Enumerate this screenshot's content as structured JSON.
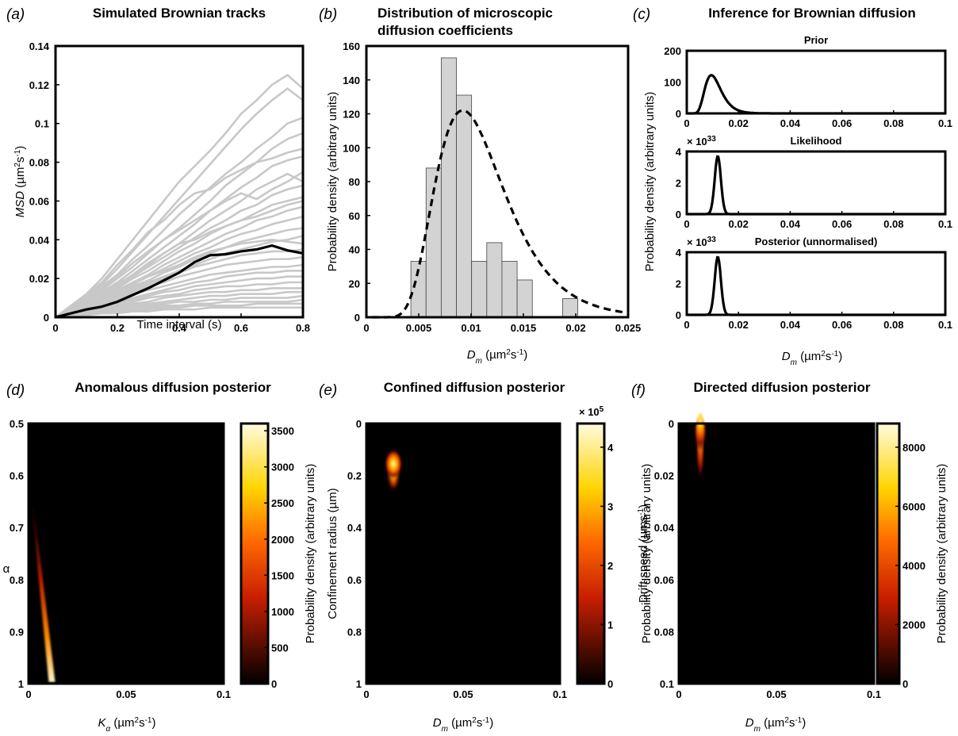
{
  "chart_data": [
    {
      "panel": "a",
      "panel_label": "(a)",
      "type": "line",
      "title": "Simulated Brownian tracks",
      "xlabel": "Time interval (s)",
      "ylabel_main": "MSD",
      "ylabel_unit": "(µm²s⁻¹)",
      "xlim": [
        0,
        0.8
      ],
      "ylim": [
        0,
        0.14
      ],
      "xticks": [
        "0",
        "0.2",
        "0.4",
        "0.6",
        "0.8"
      ],
      "yticks": [
        "0",
        "0.02",
        "0.04",
        "0.06",
        "0.08",
        "0.1",
        "0.12",
        "0.14"
      ],
      "x": [
        0,
        0.05,
        0.1,
        0.15,
        0.2,
        0.25,
        0.3,
        0.35,
        0.4,
        0.45,
        0.5,
        0.55,
        0.6,
        0.65,
        0.7,
        0.75,
        0.8
      ],
      "mean_series": {
        "color": "#000000",
        "values": [
          0,
          0.002,
          0.004,
          0.0055,
          0.008,
          0.0115,
          0.015,
          0.019,
          0.023,
          0.0285,
          0.032,
          0.0325,
          0.034,
          0.035,
          0.037,
          0.0345,
          0.033
        ]
      },
      "track_color": "#c8c8c8",
      "tracks": [
        [
          0,
          0.006,
          0.012,
          0.02,
          0.03,
          0.04,
          0.05,
          0.06,
          0.07,
          0.078,
          0.086,
          0.095,
          0.105,
          0.112,
          0.12,
          0.125,
          0.118
        ],
        [
          0,
          0.005,
          0.011,
          0.017,
          0.025,
          0.034,
          0.043,
          0.052,
          0.061,
          0.07,
          0.079,
          0.088,
          0.097,
          0.105,
          0.112,
          0.118,
          0.112
        ],
        [
          0,
          0.005,
          0.01,
          0.016,
          0.022,
          0.03,
          0.037,
          0.045,
          0.053,
          0.06,
          0.067,
          0.074,
          0.08,
          0.087,
          0.093,
          0.1,
          0.103
        ],
        [
          0,
          0.004,
          0.009,
          0.014,
          0.02,
          0.026,
          0.033,
          0.04,
          0.046,
          0.053,
          0.06,
          0.068,
          0.074,
          0.08,
          0.087,
          0.092,
          0.095
        ],
        [
          0,
          0.004,
          0.008,
          0.013,
          0.018,
          0.024,
          0.03,
          0.036,
          0.042,
          0.048,
          0.055,
          0.061,
          0.067,
          0.072,
          0.078,
          0.081,
          0.083
        ],
        [
          0,
          0.004,
          0.008,
          0.012,
          0.017,
          0.022,
          0.028,
          0.033,
          0.038,
          0.044,
          0.05,
          0.055,
          0.06,
          0.066,
          0.07,
          0.074,
          0.07
        ],
        [
          0,
          0.003,
          0.007,
          0.011,
          0.016,
          0.021,
          0.026,
          0.031,
          0.036,
          0.041,
          0.046,
          0.05,
          0.055,
          0.058,
          0.063,
          0.066,
          0.068
        ],
        [
          0,
          0.003,
          0.007,
          0.011,
          0.015,
          0.02,
          0.024,
          0.029,
          0.034,
          0.038,
          0.043,
          0.047,
          0.05,
          0.054,
          0.058,
          0.06,
          0.062
        ],
        [
          0,
          0.003,
          0.006,
          0.01,
          0.014,
          0.018,
          0.022,
          0.027,
          0.031,
          0.035,
          0.039,
          0.043,
          0.046,
          0.05,
          0.052,
          0.055,
          0.057
        ],
        [
          0,
          0.003,
          0.006,
          0.009,
          0.013,
          0.017,
          0.021,
          0.025,
          0.029,
          0.033,
          0.036,
          0.04,
          0.043,
          0.045,
          0.048,
          0.05,
          0.052
        ],
        [
          0,
          0.003,
          0.006,
          0.009,
          0.012,
          0.016,
          0.019,
          0.023,
          0.026,
          0.03,
          0.033,
          0.036,
          0.039,
          0.041,
          0.043,
          0.045,
          0.046
        ],
        [
          0,
          0.002,
          0.005,
          0.008,
          0.011,
          0.015,
          0.018,
          0.021,
          0.024,
          0.027,
          0.03,
          0.033,
          0.035,
          0.037,
          0.039,
          0.04,
          0.042
        ],
        [
          0,
          0.002,
          0.005,
          0.008,
          0.011,
          0.014,
          0.017,
          0.02,
          0.023,
          0.026,
          0.028,
          0.03,
          0.032,
          0.033,
          0.034,
          0.034,
          0.035
        ],
        [
          0,
          0.002,
          0.004,
          0.007,
          0.01,
          0.013,
          0.016,
          0.018,
          0.021,
          0.023,
          0.025,
          0.027,
          0.028,
          0.029,
          0.03,
          0.03,
          0.031
        ],
        [
          0,
          0.002,
          0.004,
          0.007,
          0.009,
          0.012,
          0.014,
          0.016,
          0.018,
          0.02,
          0.022,
          0.023,
          0.024,
          0.025,
          0.026,
          0.026,
          0.027
        ],
        [
          0,
          0.002,
          0.004,
          0.006,
          0.008,
          0.01,
          0.012,
          0.014,
          0.016,
          0.018,
          0.019,
          0.021,
          0.022,
          0.023,
          0.023,
          0.024,
          0.024
        ],
        [
          0,
          0.002,
          0.003,
          0.005,
          0.007,
          0.009,
          0.011,
          0.013,
          0.014,
          0.016,
          0.017,
          0.018,
          0.019,
          0.02,
          0.02,
          0.021,
          0.021
        ],
        [
          0,
          0.001,
          0.003,
          0.005,
          0.006,
          0.008,
          0.01,
          0.011,
          0.012,
          0.014,
          0.015,
          0.016,
          0.016,
          0.017,
          0.017,
          0.018,
          0.018
        ],
        [
          0,
          0.001,
          0.003,
          0.004,
          0.006,
          0.007,
          0.008,
          0.01,
          0.011,
          0.012,
          0.013,
          0.013,
          0.014,
          0.014,
          0.015,
          0.015,
          0.015
        ],
        [
          0,
          0.001,
          0.002,
          0.004,
          0.005,
          0.006,
          0.007,
          0.008,
          0.009,
          0.01,
          0.011,
          0.011,
          0.012,
          0.012,
          0.012,
          0.013,
          0.013
        ],
        [
          0,
          0.001,
          0.002,
          0.003,
          0.004,
          0.005,
          0.006,
          0.007,
          0.008,
          0.008,
          0.009,
          0.009,
          0.01,
          0.01,
          0.01,
          0.01,
          0.011
        ],
        [
          0,
          0.001,
          0.002,
          0.003,
          0.004,
          0.004,
          0.005,
          0.006,
          0.006,
          0.007,
          0.007,
          0.008,
          0.008,
          0.008,
          0.008,
          0.008,
          0.009
        ],
        [
          0,
          0.001,
          0.002,
          0.002,
          0.003,
          0.004,
          0.004,
          0.005,
          0.005,
          0.006,
          0.006,
          0.006,
          0.006,
          0.007,
          0.007,
          0.007,
          0.007
        ],
        [
          0,
          0.001,
          0.001,
          0.002,
          0.002,
          0.003,
          0.003,
          0.004,
          0.004,
          0.004,
          0.005,
          0.005,
          0.005,
          0.005,
          0.005,
          0.005,
          0.005
        ],
        [
          0,
          0.005,
          0.012,
          0.018,
          0.027,
          0.035,
          0.044,
          0.05,
          0.058,
          0.064,
          0.066,
          0.072,
          0.076,
          0.08,
          0.082,
          0.085,
          0.087
        ],
        [
          0,
          0.004,
          0.009,
          0.015,
          0.021,
          0.028,
          0.034,
          0.04,
          0.045,
          0.05,
          0.055,
          0.06,
          0.064,
          0.061,
          0.066,
          0.07,
          0.075
        ],
        [
          0,
          0.003,
          0.006,
          0.01,
          0.016,
          0.022,
          0.027,
          0.033,
          0.038,
          0.04,
          0.044,
          0.047,
          0.05,
          0.052,
          0.055,
          0.058,
          0.06
        ],
        [
          0,
          0.002,
          0.005,
          0.009,
          0.013,
          0.017,
          0.021,
          0.024,
          0.027,
          0.031,
          0.034,
          0.036,
          0.038,
          0.039,
          0.04,
          0.039,
          0.038
        ]
      ]
    },
    {
      "panel": "b",
      "panel_label": "(b)",
      "type": "bar",
      "title": "Distribution of microscopic diffusion coefficients",
      "title_lines": [
        "Distribution of microscopic",
        "diffusion coefficients"
      ],
      "xlabel_main": "D",
      "xlabel_sub": "m",
      "xlabel_unit": " (µm²s⁻¹)",
      "ylabel": "Probability density (arbitrary units)",
      "xlim": [
        0,
        0.025
      ],
      "ylim": [
        0,
        160
      ],
      "xticks": [
        "0",
        "0.005",
        "0.01",
        "0.015",
        "0.02",
        "0.025"
      ],
      "yticks": [
        "0",
        "20",
        "40",
        "60",
        "80",
        "100",
        "120",
        "140",
        "160"
      ],
      "bar_color": "#d3d3d3",
      "bin_width": 0.00145,
      "bin_starts": [
        0.00425,
        0.0057,
        0.00715,
        0.0086,
        0.01005,
        0.0115,
        0.01295,
        0.0144,
        0.01585,
        0.0173,
        0.01875,
        0.0202,
        0.02165
      ],
      "values": [
        33,
        88,
        153,
        131,
        33,
        44,
        33,
        22,
        0,
        0,
        11,
        0,
        0
      ],
      "fit_curve": {
        "style": "dashed",
        "peak_x": 0.0092,
        "peak_y": 122,
        "lognormal_sigma": 0.36
      }
    },
    {
      "panel": "c",
      "panel_label": "(c)",
      "type": "line",
      "title": "Inference for Brownian diffusion",
      "xlabel_main": "D",
      "xlabel_sub": "m",
      "xlabel_unit": " (µm²s⁻¹)",
      "ylabel": "Probability density (arbitrary units)",
      "xlim": [
        0,
        0.1
      ],
      "xticks": [
        "0",
        "0.02",
        "0.04",
        "0.06",
        "0.08",
        "0.1"
      ],
      "subplots": [
        {
          "name": "Prior",
          "ylim": [
            0,
            200
          ],
          "yticks": [
            "0",
            "100",
            "200"
          ],
          "exponent": "",
          "peak_x": 0.0095,
          "peak_y": 122,
          "lognormal_sigma": 0.33
        },
        {
          "name": "Likelihood",
          "ylim": [
            0,
            4
          ],
          "yticks": [
            "0",
            "2",
            "4"
          ],
          "exponent": "33",
          "peak_x": 0.012,
          "peak_y": 3.7,
          "gauss_sd": 0.0012
        },
        {
          "name": "Posterior (unnormalised)",
          "ylim": [
            0,
            4
          ],
          "yticks": [
            "0",
            "2",
            "4"
          ],
          "exponent": "33",
          "peak_x": 0.012,
          "peak_y": 3.7,
          "gauss_sd": 0.0012
        }
      ]
    },
    {
      "panel": "d",
      "panel_label": "(d)",
      "type": "heatmap",
      "title": "Anomalous diffusion  posterior",
      "xlabel_main": "K",
      "xlabel_sub": "α",
      "xlabel_unit": " (µm²s⁻¹)",
      "ylabel": "α",
      "xlim": [
        0,
        0.1
      ],
      "ylim": [
        0.5,
        1
      ],
      "xticks": [
        "0",
        "0.05",
        "0.1"
      ],
      "yticks": [
        "0.5",
        "0.6",
        "0.7",
        "0.8",
        "0.9",
        "1"
      ],
      "colorbar": {
        "label": "Probability density (arbitrary units)",
        "min": 0,
        "max": 3600,
        "ticks": [
          "0",
          "500",
          "1000",
          "1500",
          "2000",
          "2500",
          "3000",
          "3500"
        ],
        "exponent": ""
      },
      "ridge": {
        "x_at_top": 0.002,
        "y_top": 0.66,
        "x_at_bottom": 0.012,
        "y_bottom": 1.0
      }
    },
    {
      "panel": "e",
      "panel_label": "(e)",
      "type": "heatmap",
      "title": "Confined diffusion posterior",
      "xlabel_main": "D",
      "xlabel_sub": "m",
      "xlabel_unit": " (µm²s⁻¹)",
      "ylabel": "Confinement radius (µm)",
      "xlim": [
        0,
        0.1
      ],
      "ylim": [
        0,
        1
      ],
      "xticks": [
        "0",
        "0.05",
        "0.1"
      ],
      "yticks": [
        "0",
        "0.2",
        "0.4",
        "0.6",
        "0.8",
        "1"
      ],
      "colorbar": {
        "label": "Probability density (arbitrary units)",
        "min": 0,
        "max": 4.4,
        "ticks": [
          "0",
          "1",
          "2",
          "3",
          "4"
        ],
        "exponent": "5"
      },
      "peak": {
        "x": 0.014,
        "y": 0.155
      }
    },
    {
      "panel": "f",
      "panel_label": "(f)",
      "type": "heatmap",
      "title": "Directed diffusion posterior",
      "xlabel_main": "D",
      "xlabel_sub": "m",
      "xlabel_unit": " (µm²s⁻¹)",
      "ylabel": "Drift speed (µms⁻¹)",
      "xlim": [
        0,
        0.1
      ],
      "ylim": [
        0,
        0.1
      ],
      "xticks": [
        "0",
        "0.05",
        "0.1"
      ],
      "yticks": [
        "0",
        "0.02",
        "0.04",
        "0.06",
        "0.08",
        "0.1"
      ],
      "colorbar": {
        "label": "Probability density (arbitrary units)",
        "min": 0,
        "max": 8800,
        "ticks": [
          "0",
          "2000",
          "4000",
          "6000",
          "8000"
        ],
        "exponent": ""
      },
      "peak": {
        "x": 0.011,
        "y": 0.0
      }
    }
  ]
}
